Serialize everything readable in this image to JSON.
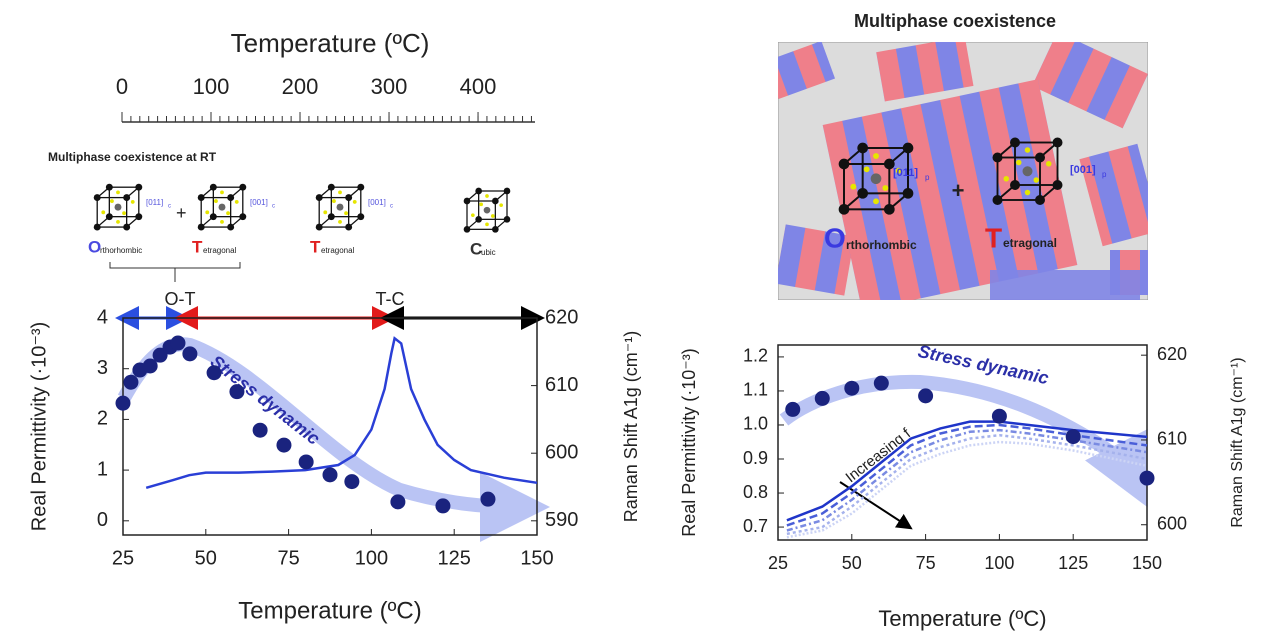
{
  "temperature_scale": {
    "title": "Temperature (ºC)",
    "xlim": [
      0,
      464
    ],
    "xticks": [
      0,
      100,
      200,
      300,
      400
    ]
  },
  "phases": {
    "title": "Multiphase coexistence at RT",
    "plus": "+",
    "orthorhombic": {
      "initial": "O",
      "rest": "rthorhombic",
      "direction": "[011]",
      "direction_sub": "c"
    },
    "tetragonal": {
      "initial": "T",
      "rest": "etragonal",
      "direction": "[001]",
      "direction_sub": "c"
    },
    "tetragonal_2": {
      "initial": "T",
      "rest": "etragonal",
      "direction": "[001]",
      "direction_sub": "c"
    },
    "cubic": {
      "initial": "C",
      "rest": "ubic"
    }
  },
  "microstructure": {
    "title": "Multiphase coexistence",
    "plus": "+",
    "orthorhombic": {
      "initial": "O",
      "rest": "rthorhombic",
      "direction": "[011]",
      "direction_sub": "p"
    },
    "tetragonal": {
      "initial": "T",
      "rest": "etragonal",
      "direction": "[001]",
      "direction_sub": "p"
    }
  },
  "chart_data": [
    {
      "type": "line",
      "xlabel": "Temperature (ºC)",
      "ylabel": "Real Permittivity (·10⁻³)",
      "y2label": "Raman Shift A1g (cm⁻¹)",
      "xlim": [
        25,
        150
      ],
      "xticks": [
        25,
        50,
        75,
        100,
        125,
        150
      ],
      "ylim": [
        -0.28,
        4
      ],
      "yticks": [
        0,
        1,
        2,
        3,
        4
      ],
      "y2lim": [
        587.9,
        620
      ],
      "y2ticks": [
        590,
        600,
        610,
        620
      ],
      "annotations": [
        "O-T",
        "T-C",
        "Stress dynamic"
      ],
      "series": [
        {
          "color": "#2a3fd6",
          "mode": "line",
          "x": [
            32,
            40,
            45,
            50,
            60,
            70,
            80,
            90,
            95,
            100,
            104,
            106,
            107,
            109,
            112,
            116,
            120,
            125,
            130,
            140,
            150
          ],
          "values": [
            0.65,
            0.8,
            0.9,
            0.95,
            0.95,
            0.97,
            1.0,
            1.1,
            1.3,
            1.8,
            2.6,
            3.3,
            3.6,
            3.5,
            2.6,
            2.0,
            1.5,
            1.2,
            1.0,
            0.85,
            0.75
          ]
        },
        {
          "color": "#1a237e",
          "mode": "markers",
          "axis": "y2",
          "x": [
            25,
            27.4,
            30.1,
            33.2,
            36.2,
            39.2,
            41.6,
            45.2,
            52.5,
            59.4,
            66.4,
            73.6,
            80.3,
            87.5,
            94.1,
            108,
            121.6,
            135.2
          ],
          "values": [
            607.4,
            610.5,
            612.3,
            612.9,
            614.5,
            615.7,
            616.3,
            614.7,
            611.9,
            609.1,
            603.4,
            601.2,
            598.7,
            596.8,
            595.8,
            592.8,
            592.2,
            593.2
          ]
        }
      ]
    },
    {
      "type": "line",
      "xlabel": "Temperature (ºC)",
      "ylabel": "Real Permittivity (·10⁻³)",
      "y2label": "Raman Shift A1g (cm⁻¹)",
      "xlim": [
        25,
        150
      ],
      "xticks": [
        25,
        50,
        75,
        100,
        125,
        150
      ],
      "ylim": [
        0.662,
        1.235
      ],
      "yticks": [
        0.7,
        0.8,
        0.9,
        {
          "value": 1.0,
          "label": "1.0"
        },
        1.1,
        1.2
      ],
      "y2lim": [
        598.2,
        621.2
      ],
      "y2ticks": [
        600,
        610,
        620
      ],
      "annotations": [
        "Stress dynamic",
        "Increasing f"
      ],
      "series": [
        {
          "color": "#1f35c9",
          "mode": "line",
          "dash": "none",
          "x": [
            28,
            40,
            50,
            60,
            70,
            80,
            90,
            100,
            110,
            125,
            150
          ],
          "values": [
            0.72,
            0.76,
            0.82,
            0.89,
            0.96,
            0.99,
            1.01,
            1.01,
            1.0,
            0.985,
            0.965
          ]
        },
        {
          "color": "#4a5fd8",
          "mode": "line",
          "dash": "8 4",
          "x": [
            28,
            40,
            50,
            60,
            70,
            80,
            90,
            100,
            110,
            125,
            150
          ],
          "values": [
            0.705,
            0.74,
            0.8,
            0.87,
            0.94,
            0.975,
            0.995,
            1.0,
            0.99,
            0.97,
            0.94
          ]
        },
        {
          "color": "#7a8be2",
          "mode": "line",
          "dash": "6 3 2 3",
          "x": [
            28,
            40,
            50,
            60,
            70,
            80,
            90,
            100,
            110,
            125,
            150
          ],
          "values": [
            0.69,
            0.72,
            0.78,
            0.85,
            0.92,
            0.955,
            0.98,
            0.985,
            0.975,
            0.955,
            0.92
          ]
        },
        {
          "color": "#a5b2ec",
          "mode": "line",
          "dash": "3 3",
          "x": [
            28,
            40,
            50,
            60,
            70,
            80,
            90,
            100,
            110,
            125,
            150
          ],
          "values": [
            0.68,
            0.7,
            0.76,
            0.83,
            0.9,
            0.935,
            0.96,
            0.97,
            0.96,
            0.94,
            0.9
          ]
        },
        {
          "color": "#ccd4f5",
          "mode": "line",
          "dash": "2 2",
          "x": [
            28,
            40,
            50,
            60,
            70,
            80,
            90,
            100,
            110,
            125,
            150
          ],
          "values": [
            0.67,
            0.69,
            0.74,
            0.81,
            0.88,
            0.915,
            0.94,
            0.95,
            0.945,
            0.925,
            0.88
          ]
        },
        {
          "color": "#1a237e",
          "mode": "markers",
          "axis": "y2",
          "x": [
            30,
            40,
            50,
            60,
            75,
            100,
            125,
            150
          ],
          "values": [
            613.6,
            614.9,
            616.1,
            616.7,
            615.2,
            612.8,
            610.4,
            605.5
          ]
        }
      ]
    }
  ]
}
